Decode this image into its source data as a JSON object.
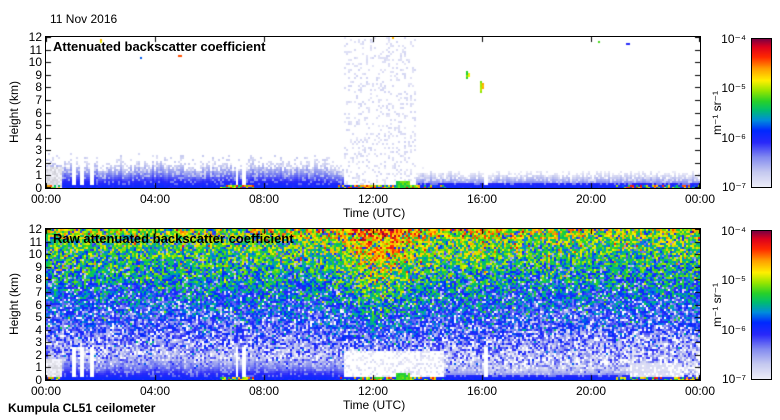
{
  "figure": {
    "date_label": "11 Nov 2016",
    "footer": "Kumpula CL51 ceilometer"
  },
  "chart_data": [
    {
      "type": "heatmap",
      "title": "Attenuated backscatter coefficient",
      "xlabel": "Time (UTC)",
      "ylabel": "Height (km)",
      "x_tick_labels": [
        "00:00",
        "04:00",
        "08:00",
        "12:00",
        "16:00",
        "20:00",
        "00:00"
      ],
      "x_range_hours": [
        0,
        24
      ],
      "y_tick_labels": [
        "0",
        "1",
        "2",
        "3",
        "4",
        "5",
        "6",
        "7",
        "8",
        "9",
        "10",
        "11",
        "12"
      ],
      "y_range_km": [
        0,
        12
      ],
      "colorbar": {
        "unit": "m⁻¹ sr⁻¹",
        "scale": "log",
        "tick_labels": [
          "10⁻⁴",
          "10⁻⁵",
          "10⁻⁶",
          "10⁻⁷"
        ],
        "min": 1e-07,
        "max": 0.0001
      },
      "features": [
        "Aerosol / boundary-layer backscatter (blue) below ~2 km through the day; layer top descends after ~09:00",
        "Signal gap (near-white) roughly 11:00-13:30 with strong surface returns remaining",
        "Strong surface-level returns (green/yellow/red) near 00:00-00:30, 06:30-07:30, 11:30-13:30 and 21:00-24:00",
        "Isolated cloud specks near 8-9 km around 15:30-16:00 and near 12 km around 02:00, 12:45, 20:30",
        "Low-signal grey columns at 00:00-00:40 below ~1.7 km; white data-gap streaks near 01:00-01:40 and 07:00-07:20"
      ]
    },
    {
      "type": "heatmap",
      "title": "Raw attenuated backscatter coefficient",
      "xlabel": "Time (UTC)",
      "ylabel": "Height (km)",
      "x_tick_labels": [
        "00:00",
        "04:00",
        "08:00",
        "12:00",
        "16:00",
        "20:00",
        "00:00"
      ],
      "x_range_hours": [
        0,
        24
      ],
      "y_tick_labels": [
        "0",
        "1",
        "2",
        "3",
        "4",
        "5",
        "6",
        "7",
        "8",
        "9",
        "10",
        "11",
        "12"
      ],
      "y_range_km": [
        0,
        12
      ],
      "colorbar": {
        "unit": "m⁻¹ sr⁻¹",
        "scale": "log",
        "tick_labels": [
          "10⁻⁴",
          "10⁻⁵",
          "10⁻⁶",
          "10⁻⁷"
        ],
        "min": 1e-07,
        "max": 0.0001
      },
      "features": [
        "Background noise over the full 0-12 km range; night-time noise green near 12 km fading to blue below ~6 km and near-white below ~2 km",
        "Noise maximum (yellow/orange column) around solar noon ~11:00-14:00, secondary brightening near 15:30-16:00",
        "Same boundary-layer signal and surface returns as upper panel; near-ground whiteout 11:00-14:30 between ~0.3 and 2.3 km",
        "Light-grey / low-signal patches at 00:00-00:40 below ~1.7 km and 21:30-23:20 near 0.3-1.3 km"
      ]
    }
  ]
}
